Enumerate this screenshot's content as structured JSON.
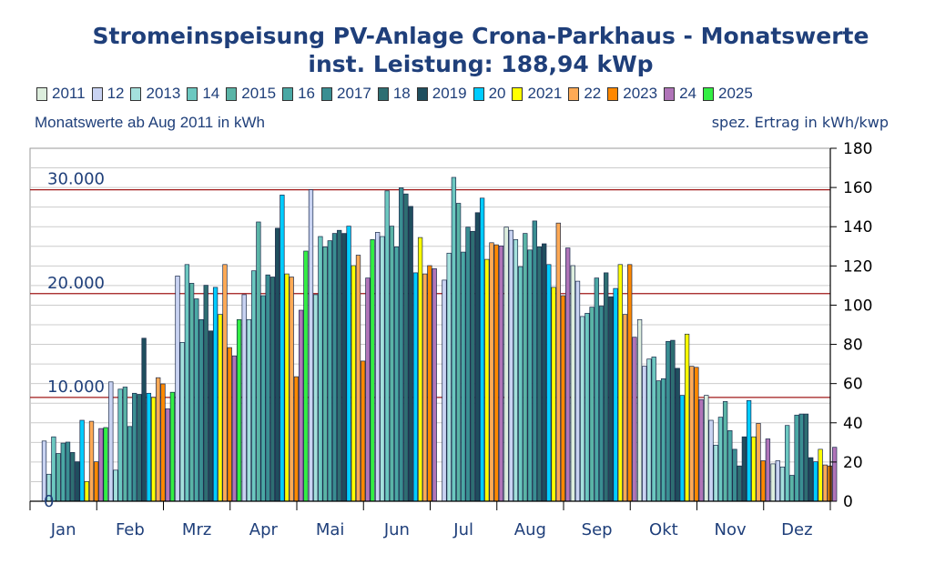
{
  "title_line1": "Stromeinspeisung PV-Anlage Crona-Parkhaus - Monatswerte",
  "title_line2": "inst. Leistung: 188,94 kWp",
  "left_axis_label": "Monatswerte ab Aug 2011 in kWh",
  "right_axis_label": "spez. Ertrag in kWh/kwp",
  "chart_data": {
    "type": "bar",
    "title": "Stromeinspeisung PV-Anlage Crona-Parkhaus - Monatswerte",
    "subtitle": "inst. Leistung: 188,94 kWp",
    "ylabel": "Monatswerte ab Aug 2011 in kWh",
    "y2label": "spez. Ertrag in kWh/kwp",
    "ylim": [
      0,
      34000
    ],
    "y2lim": [
      0,
      180
    ],
    "y_ticks": [
      {
        "value": 10000,
        "label": "10.000"
      },
      {
        "value": 20000,
        "label": "20.000"
      },
      {
        "value": 30000,
        "label": "30.000"
      }
    ],
    "y2_ticks": [
      "0",
      "20",
      "40",
      "60",
      "80",
      "100",
      "120",
      "140",
      "160",
      "180"
    ],
    "zero_label": "0",
    "categories": [
      "Jan",
      "Feb",
      "Mrz",
      "Apr",
      "Mai",
      "Jun",
      "Jul",
      "Aug",
      "Sep",
      "Okt",
      "Nov",
      "Dez"
    ],
    "legend_position": "top",
    "series": [
      {
        "name": "2011",
        "color": "#ddeedd",
        "values": [
          null,
          null,
          null,
          null,
          null,
          null,
          null,
          26400,
          22700,
          17500,
          10200,
          3600
        ]
      },
      {
        "name": "12",
        "color": "#c9d3f2",
        "values": [
          5800,
          11500,
          21700,
          19900,
          30000,
          25900,
          21300,
          26100,
          21200,
          13000,
          7800,
          3900
        ]
      },
      {
        "name": "2013",
        "color": "#a4e0dc",
        "values": [
          2600,
          3000,
          15300,
          17500,
          19900,
          25500,
          23900,
          25200,
          17800,
          13700,
          5400,
          3300
        ]
      },
      {
        "name": "14",
        "color": "#6cc8c0",
        "values": [
          6200,
          10800,
          22800,
          22200,
          25500,
          29900,
          31200,
          22600,
          18100,
          13900,
          8100,
          7300
        ]
      },
      {
        "name": "2015",
        "color": "#5ab4a6",
        "values": [
          4600,
          11000,
          21000,
          26900,
          24500,
          26500,
          28700,
          25800,
          18700,
          11600,
          9600,
          2500
        ]
      },
      {
        "name": "16",
        "color": "#4aa8a4",
        "values": [
          5600,
          7200,
          19500,
          19800,
          25100,
          24500,
          24000,
          24200,
          21500,
          11800,
          6800,
          8300
        ]
      },
      {
        "name": "2017",
        "color": "#3a8e92",
        "values": [
          5700,
          10400,
          17500,
          21800,
          25800,
          30200,
          26400,
          27000,
          18800,
          15400,
          5000,
          8400
        ]
      },
      {
        "name": "18",
        "color": "#2e6e72",
        "values": [
          4700,
          10300,
          20800,
          21600,
          26100,
          29600,
          26000,
          24500,
          22000,
          15500,
          3400,
          8400
        ]
      },
      {
        "name": "2019",
        "color": "#1f4e5e",
        "values": [
          3800,
          15700,
          16400,
          26300,
          25800,
          28400,
          27800,
          24800,
          19700,
          12800,
          6200,
          4200
        ]
      },
      {
        "name": "20",
        "color": "#00ccff",
        "values": [
          7800,
          10400,
          20600,
          29500,
          26500,
          22000,
          29200,
          22800,
          20500,
          10200,
          9700,
          3800
        ]
      },
      {
        "name": "2021",
        "color": "#ffff00",
        "values": [
          1900,
          10000,
          18000,
          21900,
          22700,
          25400,
          23300,
          20600,
          22800,
          16100,
          6200,
          5000
        ]
      },
      {
        "name": "22",
        "color": "#ffaa55",
        "values": [
          7700,
          11900,
          22800,
          21600,
          23700,
          21900,
          24900,
          26800,
          18000,
          13000,
          7500,
          3500
        ]
      },
      {
        "name": "2023",
        "color": "#ff8800",
        "values": [
          3800,
          11300,
          14800,
          12000,
          13500,
          22700,
          24700,
          19800,
          22800,
          12900,
          3900,
          3400
        ]
      },
      {
        "name": "24",
        "color": "#b074b8",
        "values": [
          7000,
          8900,
          14000,
          18400,
          21500,
          22400,
          24600,
          24400,
          15800,
          9800,
          6000,
          5200
        ]
      },
      {
        "name": "2025",
        "color": "#33ee44",
        "values": [
          7100,
          10500,
          17500,
          24100,
          25200,
          null,
          null,
          null,
          null,
          null,
          null,
          null
        ]
      }
    ]
  }
}
